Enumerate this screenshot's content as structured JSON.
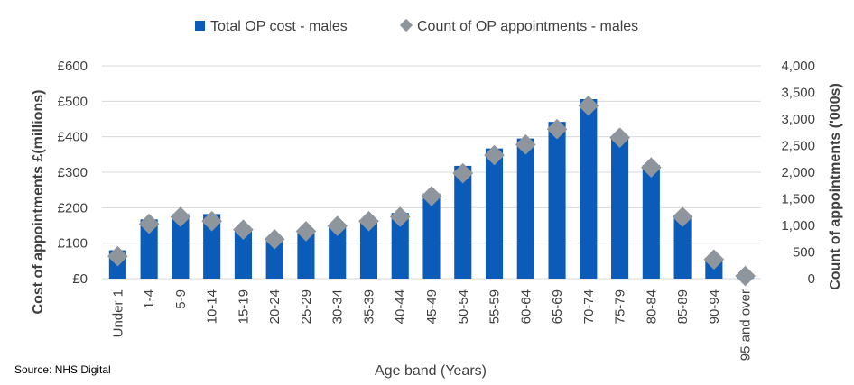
{
  "chart_data": {
    "type": "bar",
    "title": "",
    "xlabel": "Age band (Years)",
    "ylabel": "Cost of appointments £(millions)",
    "y2label": "Count of appointments ('000s)",
    "source": "Source: NHS Digital",
    "legend_position": "top",
    "grid": true,
    "categories": [
      "Under 1",
      "1-4",
      "5-9",
      "10-14",
      "15-19",
      "20-24",
      "25-29",
      "30-34",
      "35-39",
      "40-44",
      "45-49",
      "50-54",
      "55-59",
      "60-64",
      "65-69",
      "70-74",
      "75-79",
      "80-84",
      "85-89",
      "90-94",
      "95 and over"
    ],
    "series": [
      {
        "name": "Total OP cost - males",
        "axis": "left",
        "kind": "bar",
        "color": "#0a5cb8",
        "values": [
          80,
          167,
          182,
          182,
          140,
          110,
          130,
          150,
          165,
          185,
          240,
          318,
          367,
          395,
          442,
          506,
          400,
          320,
          178,
          55,
          2
        ]
      },
      {
        "name": "Count of OP appointments - males",
        "axis": "right",
        "kind": "marker",
        "color": "#8e959c",
        "values": [
          420,
          1030,
          1160,
          1080,
          920,
          740,
          890,
          990,
          1080,
          1160,
          1550,
          1980,
          2320,
          2520,
          2810,
          3250,
          2650,
          2090,
          1160,
          360,
          50
        ]
      }
    ],
    "ylim": [
      0,
      600
    ],
    "y_ticks": [
      "£0",
      "£100",
      "£200",
      "£300",
      "£400",
      "£500",
      "£600"
    ],
    "y2lim": [
      0,
      4000
    ],
    "y2_ticks": [
      "0",
      "500",
      "1,000",
      "1,500",
      "2,000",
      "2,500",
      "3,000",
      "3,500",
      "4,000"
    ]
  }
}
